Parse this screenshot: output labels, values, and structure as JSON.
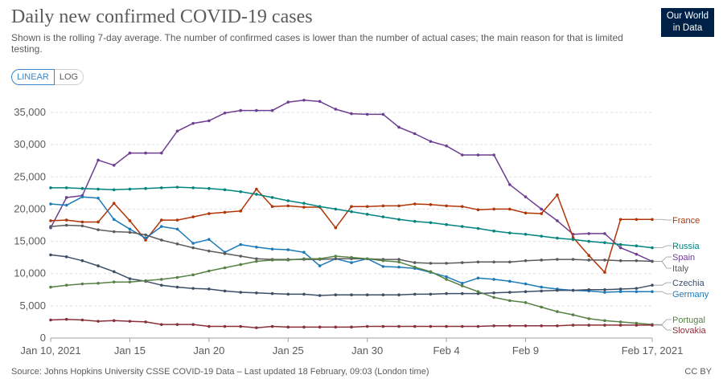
{
  "header": {
    "title": "Daily new confirmed COVID-19 cases",
    "subtitle": "Shown is the rolling 7-day average. The number of confirmed cases is lower than the number of actual cases; the main reason for that is limited testing.",
    "logo_line1": "Our World",
    "logo_line2": "in Data"
  },
  "controls": {
    "linear_label": "LINEAR",
    "log_label": "LOG",
    "active": "LINEAR"
  },
  "footer": {
    "source": "Source: Johns Hopkins University CSSE COVID-19 Data – Last updated 18 February, 09:03 (London time)",
    "license": "CC BY"
  },
  "chart_data": {
    "type": "line",
    "title": "Daily new confirmed COVID-19 cases",
    "ylim": [
      0,
      35000
    ],
    "y_ticks": [
      0,
      5000,
      10000,
      15000,
      20000,
      25000,
      30000,
      35000
    ],
    "y_tick_labels": [
      "0",
      "5,000",
      "10,000",
      "15,000",
      "20,000",
      "25,000",
      "30,000",
      "35,000"
    ],
    "x_tick_labels": [
      {
        "day": 0,
        "label": "Jan 10, 2021"
      },
      {
        "day": 5,
        "label": "Jan 15"
      },
      {
        "day": 10,
        "label": "Jan 20"
      },
      {
        "day": 15,
        "label": "Jan 25"
      },
      {
        "day": 20,
        "label": "Jan 30"
      },
      {
        "day": 25,
        "label": "Feb 4"
      },
      {
        "day": 30,
        "label": "Feb 9"
      },
      {
        "day": 38,
        "label": "Feb 17, 2021"
      }
    ],
    "dates": [
      "Jan 10",
      "Jan 11",
      "Jan 12",
      "Jan 13",
      "Jan 14",
      "Jan 15",
      "Jan 16",
      "Jan 17",
      "Jan 18",
      "Jan 19",
      "Jan 20",
      "Jan 21",
      "Jan 22",
      "Jan 23",
      "Jan 24",
      "Jan 25",
      "Jan 26",
      "Jan 27",
      "Jan 28",
      "Jan 29",
      "Jan 30",
      "Jan 31",
      "Feb 1",
      "Feb 2",
      "Feb 3",
      "Feb 4",
      "Feb 5",
      "Feb 6",
      "Feb 7",
      "Feb 8",
      "Feb 9",
      "Feb 10",
      "Feb 11",
      "Feb 12",
      "Feb 13",
      "Feb 14",
      "Feb 15",
      "Feb 16",
      "Feb 17"
    ],
    "series": [
      {
        "name": "Spain",
        "color": "#6d3e91",
        "show_label": false,
        "values": [
          17100,
          21800,
          22100,
          27600,
          26800,
          28700,
          28700,
          28700,
          32100,
          33300,
          33700,
          34900,
          35300,
          35300,
          35300,
          36600,
          36900,
          36700,
          35500,
          34800,
          34700,
          34700,
          32700,
          31700,
          30500,
          29800,
          28400,
          28400,
          28400,
          23800,
          21900,
          20000,
          18200,
          16100,
          16200,
          16200,
          14000,
          13000,
          11900
        ]
      },
      {
        "name": "France",
        "color": "#b13507",
        "show_label": true,
        "values": [
          18200,
          18300,
          18000,
          18000,
          20900,
          18200,
          15200,
          18300,
          18300,
          18800,
          19300,
          19500,
          19700,
          23100,
          20400,
          20500,
          20300,
          20300,
          17100,
          20400,
          20400,
          20500,
          20500,
          20800,
          20700,
          20500,
          20400,
          19900,
          20000,
          20000,
          19400,
          19300,
          22200,
          15600,
          12800,
          10200,
          18400,
          18400,
          18400
        ]
      },
      {
        "name": "Russia",
        "color": "#00847e",
        "show_label": true,
        "values": [
          23300,
          23300,
          23200,
          23100,
          23000,
          23100,
          23200,
          23300,
          23400,
          23300,
          23200,
          23000,
          22700,
          22300,
          21800,
          21300,
          20900,
          20400,
          20000,
          19600,
          19200,
          18800,
          18400,
          18100,
          17900,
          17600,
          17300,
          17000,
          16600,
          16300,
          16100,
          15800,
          15500,
          15300,
          15000,
          14800,
          14500,
          14300,
          14000
        ]
      },
      {
        "name": "Germany",
        "color": "#1d7ab8",
        "show_label": true,
        "values": [
          20800,
          20600,
          21900,
          21700,
          18400,
          16900,
          15500,
          17300,
          16900,
          14700,
          15300,
          13300,
          14500,
          14100,
          13800,
          13700,
          13300,
          11200,
          12300,
          11700,
          12300,
          11100,
          11000,
          10800,
          10200,
          9500,
          8500,
          9300,
          9100,
          8800,
          8400,
          7900,
          7600,
          7400,
          7300,
          7100,
          7200,
          7200,
          7200
        ]
      },
      {
        "name": "Italy",
        "color": "#5b5b5b",
        "show_label": false,
        "values": [
          17300,
          17500,
          17400,
          16800,
          16500,
          16400,
          16000,
          15200,
          14600,
          14000,
          13500,
          13100,
          12700,
          12300,
          12200,
          12200,
          12200,
          12200,
          12300,
          12300,
          12300,
          12200,
          12200,
          11700,
          11600,
          11600,
          11700,
          11800,
          11800,
          11800,
          12000,
          12100,
          12200,
          12200,
          12100,
          12100,
          12000,
          12000,
          11900
        ]
      },
      {
        "name": "Czechia",
        "color": "#3c4e66",
        "show_label": true,
        "values": [
          12900,
          12600,
          12000,
          11200,
          10300,
          9200,
          8800,
          8200,
          7900,
          7700,
          7600,
          7300,
          7100,
          7000,
          6900,
          6800,
          6800,
          6600,
          6700,
          6700,
          6700,
          6700,
          6700,
          6800,
          6800,
          6900,
          6900,
          6900,
          7000,
          7100,
          7200,
          7300,
          7400,
          7400,
          7500,
          7500,
          7600,
          7700,
          8200
        ]
      },
      {
        "name": "Portugal",
        "color": "#578145",
        "show_label": true,
        "values": [
          7900,
          8200,
          8400,
          8500,
          8700,
          8700,
          8900,
          9100,
          9400,
          9800,
          10400,
          10900,
          11400,
          11900,
          12100,
          12100,
          12300,
          12300,
          12700,
          12500,
          12300,
          12000,
          11800,
          11000,
          10300,
          9100,
          8100,
          7200,
          6300,
          5800,
          5500,
          4800,
          4100,
          3600,
          3000,
          2700,
          2500,
          2300,
          2100
        ]
      },
      {
        "name": "Slovakia",
        "color": "#883039",
        "show_label": true,
        "values": [
          2800,
          2900,
          2800,
          2600,
          2700,
          2600,
          2500,
          2100,
          2100,
          2100,
          1800,
          1800,
          1800,
          1600,
          1800,
          1700,
          1700,
          1700,
          1700,
          1700,
          1800,
          1800,
          1800,
          1800,
          1800,
          1800,
          1800,
          1800,
          1900,
          1900,
          1900,
          1900,
          1900,
          2000,
          2000,
          2000,
          2000,
          2000,
          2000
        ]
      }
    ],
    "legend_labels": [
      "France",
      "Russia",
      "Spain",
      "Italy",
      "Czechia",
      "Germany",
      "Portugal",
      "Slovakia"
    ],
    "gridlines": true,
    "legend_placement": "right"
  }
}
